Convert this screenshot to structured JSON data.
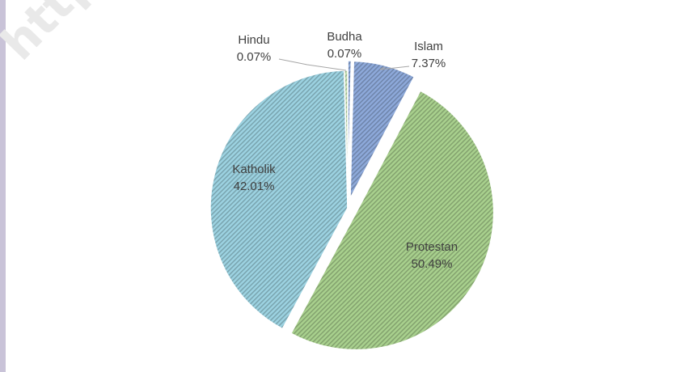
{
  "watermark": "https://",
  "chart_data": {
    "type": "pie",
    "title": "",
    "slices": [
      {
        "label": "Budha",
        "value": 0.07,
        "display": "0.07%",
        "color": "#8eaadb",
        "exploded": true
      },
      {
        "label": "Islam",
        "value": 7.37,
        "display": "7.37%",
        "color": "#8eaadb",
        "exploded": true
      },
      {
        "label": "Protestan",
        "value": 50.49,
        "display": "50.49%",
        "color": "#a9d18e",
        "exploded": true
      },
      {
        "label": "Katholik",
        "value": 42.01,
        "display": "42.01%",
        "color": "#9dd3e2",
        "exploded": false
      },
      {
        "label": "Hindu",
        "value": 0.07,
        "display": "0.07%",
        "color": "#c5e0b4",
        "exploded": false
      }
    ],
    "pattern": "diagonal-hatch",
    "legend": "none",
    "label_style": "category name and percentage"
  }
}
